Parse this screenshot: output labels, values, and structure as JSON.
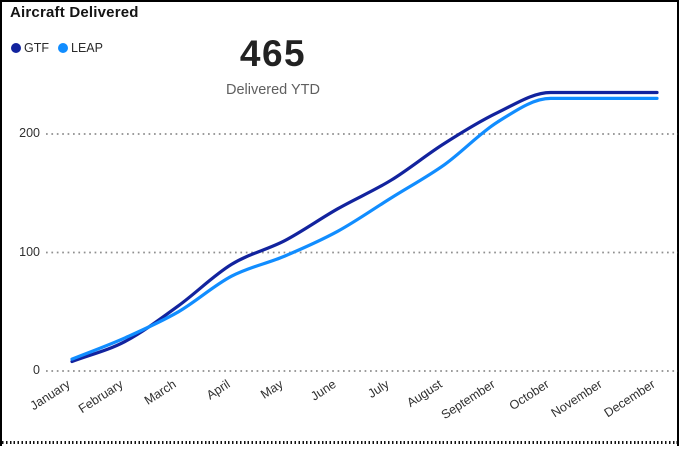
{
  "header": {
    "title": "Aircraft Delivered"
  },
  "kpi": {
    "value": "465",
    "label": "Delivered YTD"
  },
  "chart_data": {
    "type": "line",
    "title": "Aircraft Delivered",
    "categories": [
      "January",
      "February",
      "March",
      "April",
      "May",
      "June",
      "July",
      "August",
      "September",
      "October",
      "November",
      "December"
    ],
    "series": [
      {
        "name": "GTF",
        "color": "#12239E",
        "values": [
          8,
          25,
          55,
          90,
          110,
          137,
          161,
          192,
          218,
          235,
          235,
          235
        ]
      },
      {
        "name": "LEAP",
        "color": "#118DFF",
        "values": [
          10,
          28,
          50,
          80,
          97,
          118,
          146,
          174,
          210,
          230,
          230,
          230
        ]
      }
    ],
    "yticks": [
      0,
      100,
      200
    ],
    "ylim": [
      0,
      260
    ],
    "xlabel": "",
    "ylabel": "",
    "grid": "horizontal-dotted",
    "gridline_color": "#8f8f8f",
    "legend_position": "top-left",
    "line_style": "smooth"
  }
}
